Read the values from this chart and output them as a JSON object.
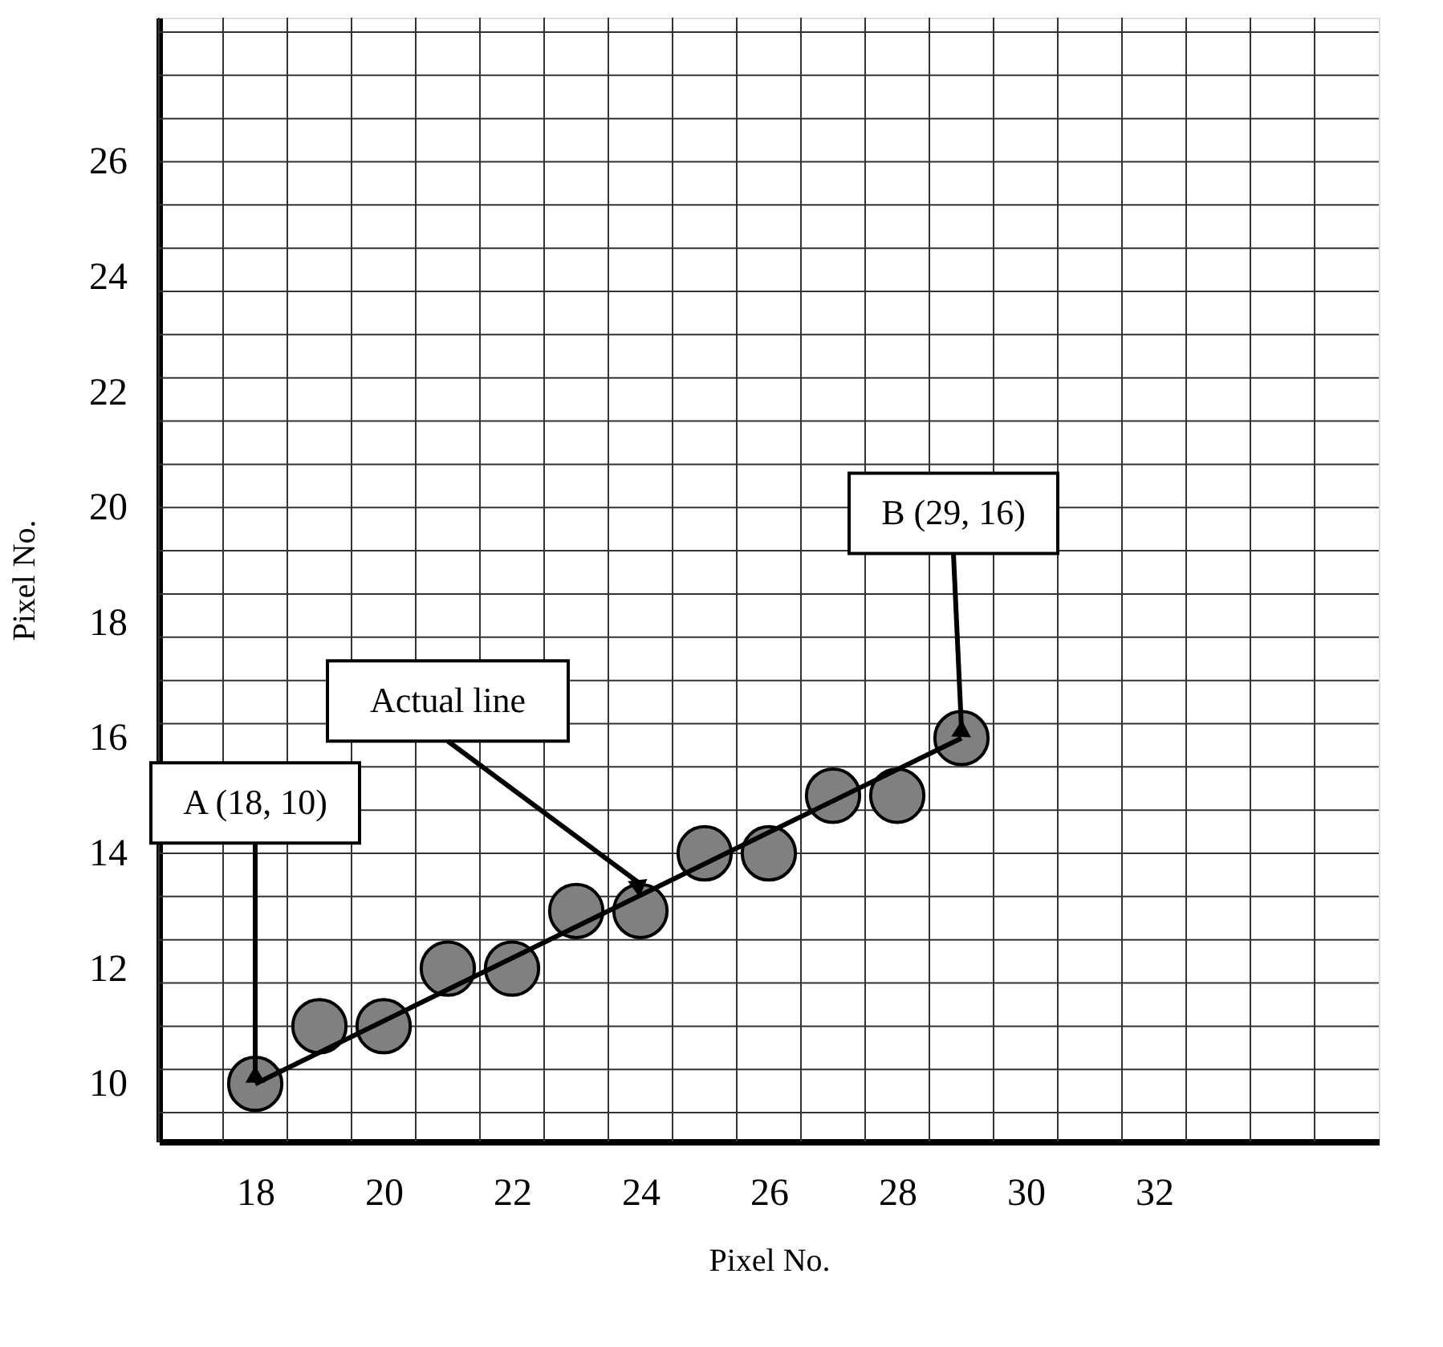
{
  "chart_data": {
    "type": "scatter",
    "xlabel": "Pixel No.",
    "ylabel": "Pixel No.",
    "xlim": [
      16.5,
      35.5
    ],
    "ylim": [
      9,
      28.5
    ],
    "xticks": [
      18,
      20,
      22,
      24,
      26,
      28,
      30,
      32
    ],
    "yticks": [
      10,
      12,
      14,
      16,
      18,
      20,
      22,
      24,
      26
    ],
    "grid": true,
    "marker": "circle",
    "series": [
      {
        "color": "#808080",
        "x": [
          18,
          19,
          20,
          21,
          22,
          23,
          24,
          25,
          26,
          27,
          28,
          29
        ],
        "values": [
          10,
          11,
          11,
          12,
          12,
          13,
          13,
          14,
          14,
          15,
          15,
          16
        ]
      },
      {
        "type": "line",
        "marker": "none",
        "color": "#000000",
        "x": [
          18,
          29
        ],
        "values": [
          10,
          16
        ]
      }
    ],
    "annotations": [
      {
        "text": "A (18, 10)",
        "x": 18,
        "y": 10
      },
      {
        "text": "Actual line",
        "x": 24,
        "y": 13.3
      },
      {
        "text": "B (29, 16)",
        "x": 29,
        "y": 16
      }
    ]
  }
}
